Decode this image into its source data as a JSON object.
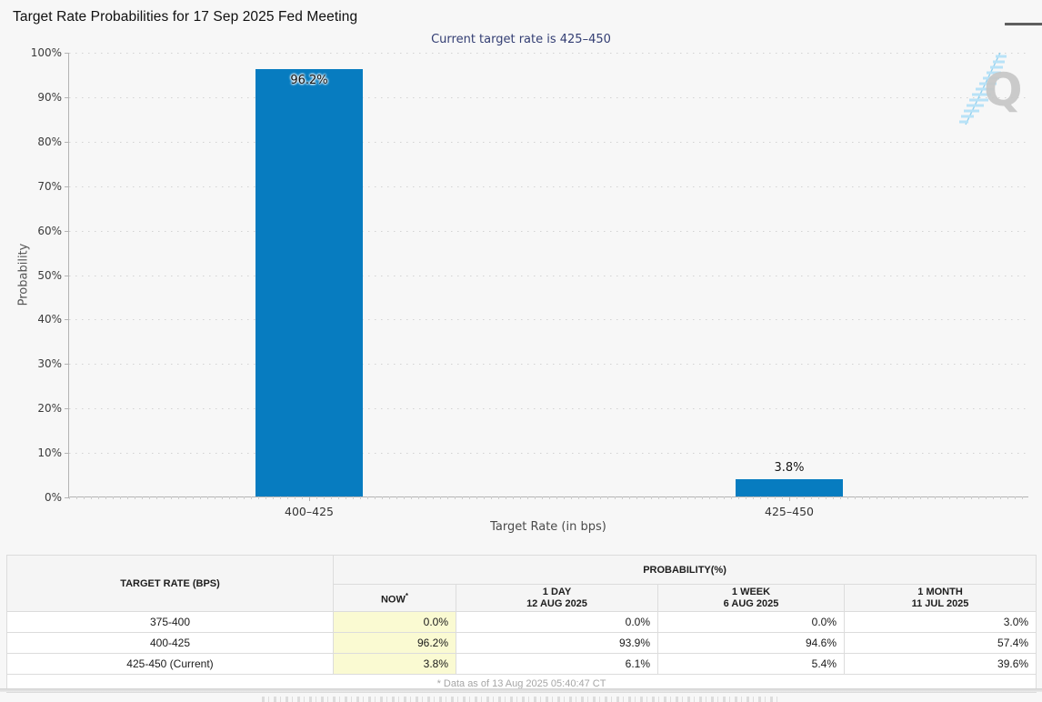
{
  "header": {
    "title": "Target Rate Probabilities for 17 Sep 2025 Fed Meeting"
  },
  "chart": {
    "subtitle": "Current target rate is 425–450",
    "ylabel": "Probability",
    "xlabel": "Target Rate (in bps)",
    "watermark_letter": "Q"
  },
  "chart_data": {
    "type": "bar",
    "title": "Target Rate Probabilities for 17 Sep 2025 Fed Meeting",
    "subtitle": "Current target rate is 425–450",
    "categories": [
      "400–425",
      "425–450"
    ],
    "values": [
      96.2,
      3.8
    ],
    "bar_labels": [
      "96.2%",
      "3.8%"
    ],
    "xlabel": "Target Rate (in bps)",
    "ylabel": "Probability",
    "ylim": [
      0,
      100
    ],
    "y_tick_step": 10,
    "y_tick_suffix": "%",
    "grid": true,
    "legend": false,
    "bar_color": "#077CC0"
  },
  "table": {
    "header": {
      "target_rate": "TARGET RATE (BPS)",
      "probability": "PROBABILITY(%)",
      "now": "NOW",
      "now_note_marker": "*",
      "cols": [
        {
          "line1": "1 DAY",
          "line2": "12 AUG 2025"
        },
        {
          "line1": "1 WEEK",
          "line2": "6 AUG 2025"
        },
        {
          "line1": "1 MONTH",
          "line2": "11 JUL 2025"
        }
      ]
    },
    "rows": [
      {
        "rate": "375-400",
        "now": "0.0%",
        "day": "0.0%",
        "week": "0.0%",
        "month": "3.0%"
      },
      {
        "rate": "400-425",
        "now": "96.2%",
        "day": "93.9%",
        "week": "94.6%",
        "month": "57.4%"
      },
      {
        "rate": "425-450 (Current)",
        "now": "3.8%",
        "day": "6.1%",
        "week": "5.4%",
        "month": "39.6%"
      }
    ],
    "footnote": "* Data as of 13 Aug 2025 05:40:47 CT"
  },
  "colors": {
    "bar": "#077CC0",
    "subtitle_text": "#333E73",
    "now_highlight": "#FAFAD2",
    "page_bg": "#F7F7F7",
    "table_header_bg": "#F5F5F5",
    "watermark_gray": "#C7C7C7",
    "watermark_blue": "#B8E2F7"
  }
}
